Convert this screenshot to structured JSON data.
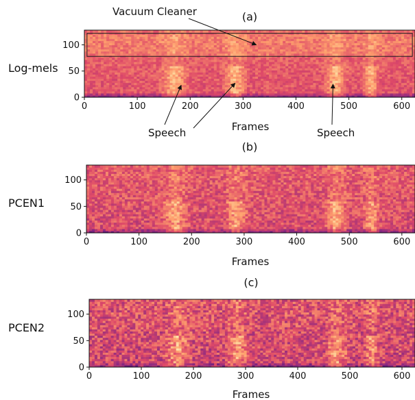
{
  "chart_data": [
    {
      "type": "heatmap",
      "panel_label": "(a)",
      "ylabel": "Log-mels",
      "xlabel": "Frames",
      "xlim": [
        0,
        625
      ],
      "ylim": [
        0,
        128
      ],
      "xticks": [
        0,
        100,
        200,
        300,
        400,
        500,
        600
      ],
      "yticks": [
        0,
        50,
        100
      ],
      "colormap": [
        "#000004",
        "#3b0f70",
        "#8c2981",
        "#de4968",
        "#fe9f6d",
        "#fcfdbf"
      ],
      "speech_segments": [
        [
          140,
          200
        ],
        [
          260,
          310
        ],
        [
          450,
          500
        ],
        [
          525,
          560
        ]
      ],
      "annotations": [
        {
          "text": "Vacuum Cleaner",
          "target": [
            325,
            100
          ],
          "kind": "box",
          "box_x": [
            5,
            620
          ],
          "box_y": [
            78,
            122
          ]
        },
        {
          "text": "Speech",
          "target": [
            183,
            23
          ]
        },
        {
          "text": "Speech",
          "target": [
            285,
            27
          ]
        },
        {
          "text": "Speech",
          "target": [
            470,
            25
          ]
        }
      ]
    },
    {
      "type": "heatmap",
      "panel_label": "(b)",
      "ylabel": "PCEN1",
      "xlabel": "Frames",
      "xlim": [
        0,
        625
      ],
      "ylim": [
        0,
        128
      ],
      "xticks": [
        0,
        100,
        200,
        300,
        400,
        500,
        600
      ],
      "yticks": [
        0,
        50,
        100
      ],
      "colormap": [
        "#000004",
        "#3b0f70",
        "#8c2981",
        "#de4968",
        "#fe9f6d",
        "#fcfdbf"
      ],
      "speech_segments": [
        [
          140,
          200
        ],
        [
          260,
          310
        ],
        [
          450,
          500
        ],
        [
          525,
          560
        ]
      ]
    },
    {
      "type": "heatmap",
      "panel_label": "(c)",
      "ylabel": "PCEN2",
      "xlabel": "Frames",
      "xlim": [
        0,
        625
      ],
      "ylim": [
        0,
        128
      ],
      "xticks": [
        0,
        100,
        200,
        300,
        400,
        500,
        600
      ],
      "yticks": [
        0,
        50,
        100
      ],
      "colormap": [
        "#000004",
        "#3b0f70",
        "#8c2981",
        "#de4968",
        "#fe9f6d",
        "#fcfdbf"
      ],
      "speech_segments": [
        [
          140,
          200
        ],
        [
          260,
          310
        ],
        [
          450,
          500
        ],
        [
          525,
          560
        ]
      ]
    }
  ]
}
